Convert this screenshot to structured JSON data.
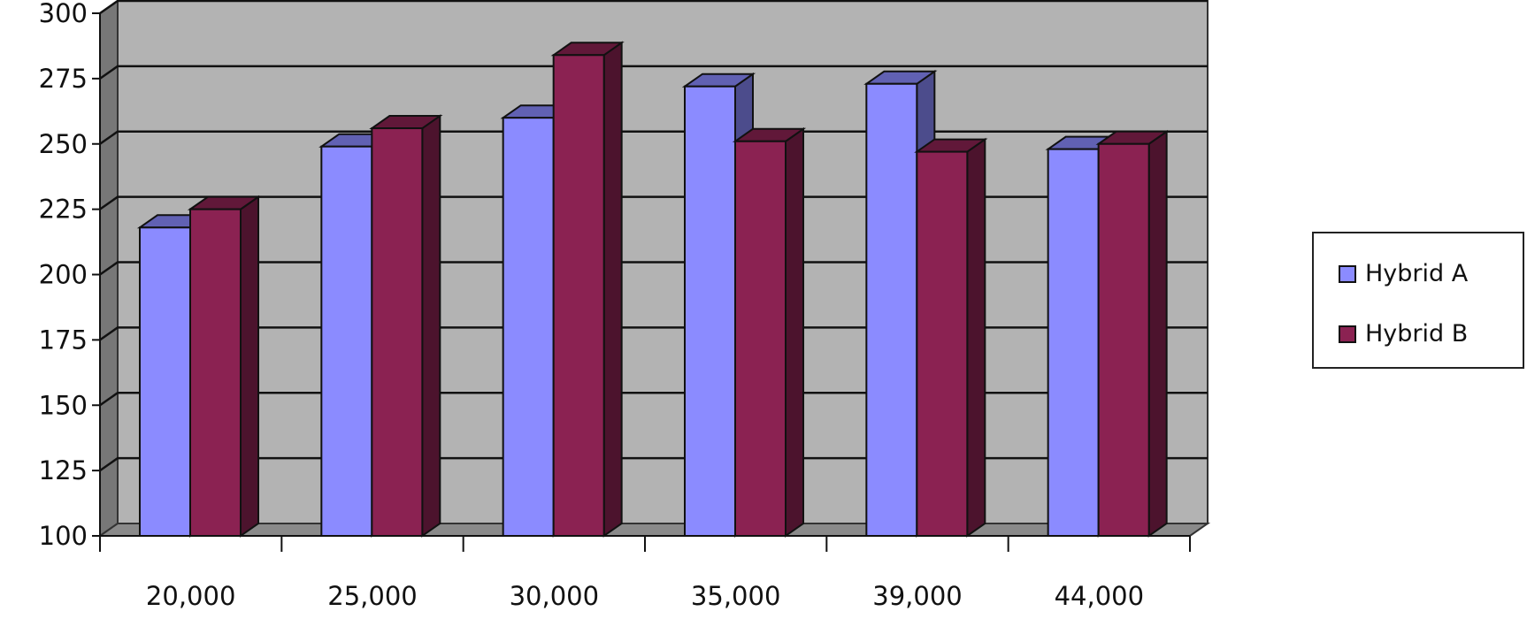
{
  "chart_data": {
    "type": "bar",
    "categories": [
      "20,000",
      "25,000",
      "30,000",
      "35,000",
      "39,000",
      "44,000"
    ],
    "series": [
      {
        "name": "Hybrid A",
        "values": [
          218,
          249,
          260,
          272,
          273,
          248
        ],
        "color": "#8b8bff"
      },
      {
        "name": "Hybrid B",
        "values": [
          225,
          256,
          284,
          251,
          247,
          250
        ],
        "color": "#8b2252"
      }
    ],
    "ylim": [
      100,
      300
    ],
    "yticks": [
      100,
      125,
      150,
      175,
      200,
      225,
      250,
      275,
      300
    ],
    "grid": true,
    "legend_position": "right",
    "style": "3d-clustered-column",
    "wall_color": "#b3b3b3"
  }
}
